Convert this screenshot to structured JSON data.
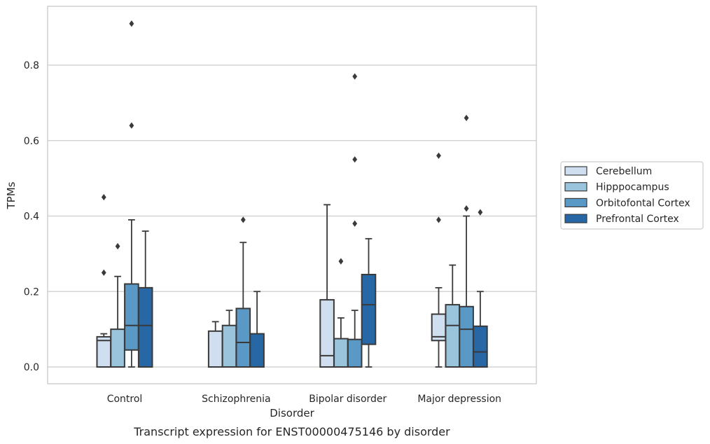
{
  "chart_data": {
    "type": "box",
    "caption": "Transcript expression for ENST00000475146 by disorder",
    "xlabel": "Disorder",
    "ylabel": "TPMs",
    "ylim": [
      -0.045,
      0.955
    ],
    "yticks": [
      0.0,
      0.2,
      0.4,
      0.6,
      0.8
    ],
    "ytick_labels": [
      "0.0",
      "0.2",
      "0.4",
      "0.6",
      "0.8"
    ],
    "grid": true,
    "legend_position": "right",
    "categories": [
      "Control",
      "Schizophrenia",
      "Bipolar disorder",
      "Major depression"
    ],
    "series": [
      {
        "name": "Cerebellum",
        "color": "#cfdfef",
        "boxes": [
          {
            "whisker_low": 0.0,
            "q1": 0.0,
            "median": 0.07,
            "q3": 0.08,
            "whisker_high": 0.088,
            "outliers": [
              0.25,
              0.45
            ]
          },
          {
            "whisker_low": 0.0,
            "q1": 0.0,
            "median": 0.0,
            "q3": 0.095,
            "whisker_high": 0.12,
            "outliers": []
          },
          {
            "whisker_low": 0.0,
            "q1": 0.0,
            "median": 0.03,
            "q3": 0.178,
            "whisker_high": 0.43,
            "outliers": []
          },
          {
            "whisker_low": 0.0,
            "q1": 0.07,
            "median": 0.08,
            "q3": 0.14,
            "whisker_high": 0.21,
            "outliers": [
              0.39,
              0.56
            ]
          }
        ]
      },
      {
        "name": "Hipppocampus",
        "color": "#9ac3dc",
        "boxes": [
          {
            "whisker_low": 0.0,
            "q1": 0.0,
            "median": 0.0,
            "q3": 0.1,
            "whisker_high": 0.24,
            "outliers": [
              0.32
            ]
          },
          {
            "whisker_low": 0.0,
            "q1": 0.0,
            "median": 0.0,
            "q3": 0.11,
            "whisker_high": 0.15,
            "outliers": []
          },
          {
            "whisker_low": 0.0,
            "q1": 0.0,
            "median": 0.0,
            "q3": 0.075,
            "whisker_high": 0.13,
            "outliers": [
              0.28
            ]
          },
          {
            "whisker_low": 0.0,
            "q1": 0.0,
            "median": 0.11,
            "q3": 0.165,
            "whisker_high": 0.27,
            "outliers": []
          }
        ]
      },
      {
        "name": "Orbitofontal Cortex",
        "color": "#5a98c6",
        "boxes": [
          {
            "whisker_low": 0.0,
            "q1": 0.045,
            "median": 0.11,
            "q3": 0.22,
            "whisker_high": 0.39,
            "outliers": [
              0.64,
              0.91
            ]
          },
          {
            "whisker_low": 0.0,
            "q1": 0.0,
            "median": 0.065,
            "q3": 0.155,
            "whisker_high": 0.33,
            "outliers": [
              0.39
            ]
          },
          {
            "whisker_low": 0.0,
            "q1": 0.0,
            "median": 0.0,
            "q3": 0.073,
            "whisker_high": 0.15,
            "outliers": [
              0.38,
              0.55,
              0.77
            ]
          },
          {
            "whisker_low": 0.0,
            "q1": 0.0,
            "median": 0.1,
            "q3": 0.16,
            "whisker_high": 0.4,
            "outliers": [
              0.42,
              0.66
            ]
          }
        ]
      },
      {
        "name": "Prefrontal Cortex",
        "color": "#2867a6",
        "boxes": [
          {
            "whisker_low": 0.0,
            "q1": 0.0,
            "median": 0.11,
            "q3": 0.21,
            "whisker_high": 0.36,
            "outliers": []
          },
          {
            "whisker_low": 0.0,
            "q1": 0.0,
            "median": 0.0,
            "q3": 0.088,
            "whisker_high": 0.2,
            "outliers": []
          },
          {
            "whisker_low": 0.0,
            "q1": 0.06,
            "median": 0.165,
            "q3": 0.245,
            "whisker_high": 0.34,
            "outliers": []
          },
          {
            "whisker_low": 0.0,
            "q1": 0.0,
            "median": 0.04,
            "q3": 0.108,
            "whisker_high": 0.2,
            "outliers": [
              0.41
            ]
          }
        ]
      }
    ]
  }
}
